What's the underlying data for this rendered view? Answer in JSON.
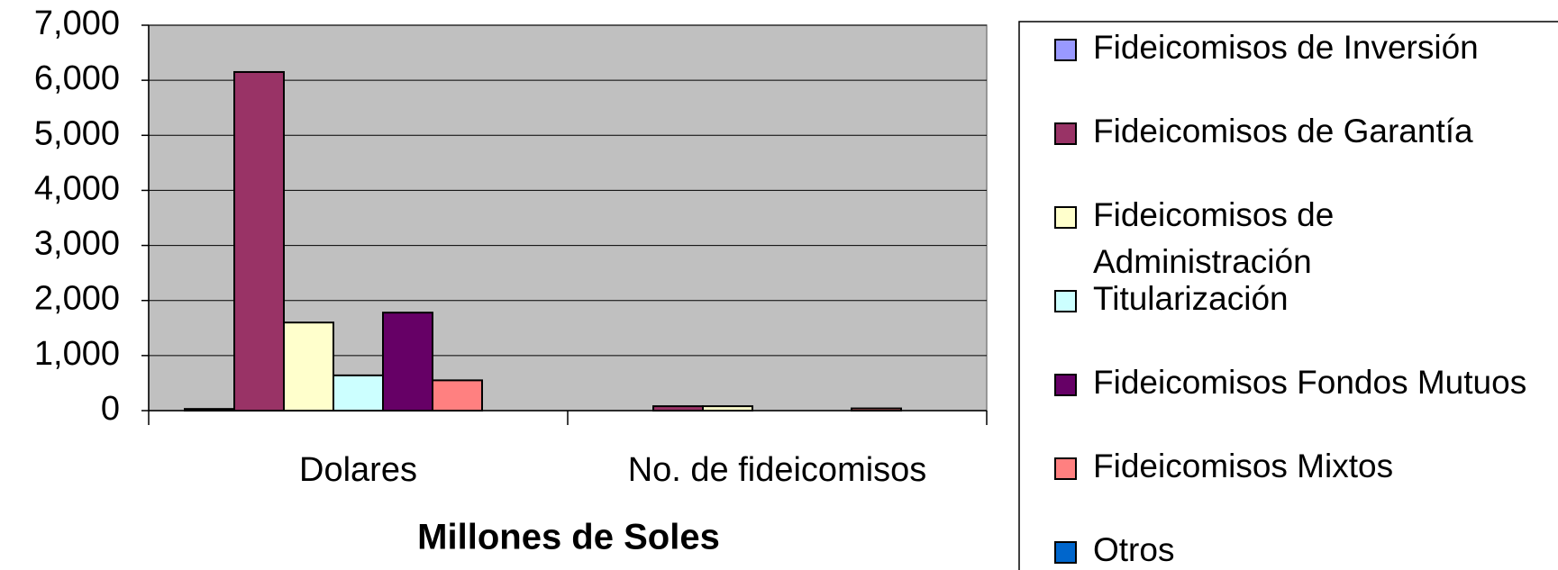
{
  "chart_data": {
    "type": "bar",
    "xlabel": "Millones de Soles",
    "categories": [
      "Dolares",
      "No. de fideicomisos"
    ],
    "series": [
      {
        "name": "Fideicomisos de Inversión",
        "color": "#9999ff",
        "values": [
          30,
          0
        ]
      },
      {
        "name": "Fideicomisos de Garantía",
        "color": "#993366",
        "values": [
          6150,
          80
        ]
      },
      {
        "name": "Fideicomisos de Administración",
        "color": "#ffffcc",
        "values": [
          1600,
          80
        ]
      },
      {
        "name": "Titularización",
        "color": "#ccffff",
        "values": [
          640,
          0
        ]
      },
      {
        "name": "Fideicomisos Fondos Mutuos",
        "color": "#660066",
        "values": [
          1780,
          0
        ]
      },
      {
        "name": "Fideicomisos Mixtos",
        "color": "#ff8080",
        "values": [
          550,
          40
        ]
      },
      {
        "name": "Otros",
        "color": "#0066cc",
        "values": [
          0,
          0
        ]
      }
    ],
    "ylim": [
      0,
      7000
    ],
    "yticks": [
      0,
      {
        "value": 1000,
        "label": "1,000"
      },
      {
        "value": 2000,
        "label": "2,000"
      },
      {
        "value": 3000,
        "label": "3,000"
      },
      {
        "value": 4000,
        "label": "4,000"
      },
      {
        "value": 5000,
        "label": "5,000"
      },
      {
        "value": 6000,
        "label": "6,000"
      },
      {
        "value": 7000,
        "label": "7,000"
      }
    ],
    "grid": true,
    "legend": "right",
    "background": "#c0c0c0"
  }
}
